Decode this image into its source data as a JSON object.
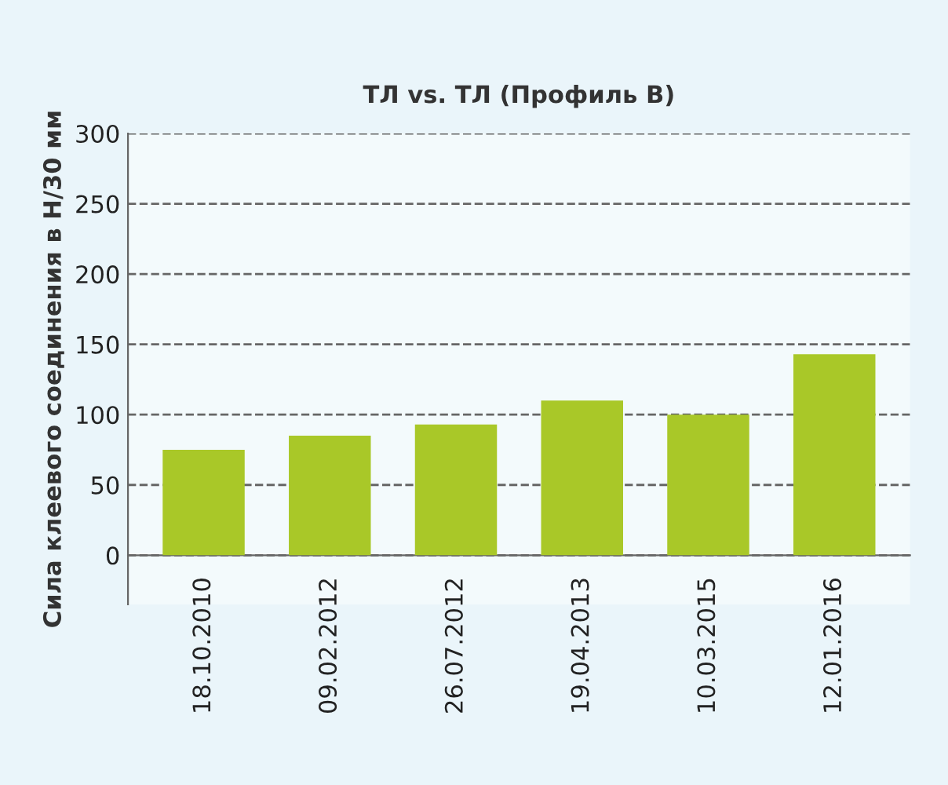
{
  "chart_data": {
    "type": "bar",
    "title": "ТЛ vs. ТЛ (Профиль B)",
    "ylabel": "Сила клеевого соединения в Н/30 мм",
    "categories": [
      "18.10.2010",
      "09.02.2012",
      "26.07.2012",
      "19.04.2013",
      "10.03.2015",
      "12.01.2016"
    ],
    "values": [
      75,
      85,
      93,
      110,
      100,
      143
    ],
    "color": "#a9c828",
    "ylim": [
      -35,
      300
    ],
    "yticks": [
      0,
      50,
      100,
      150,
      200,
      250,
      300
    ],
    "grid": "y",
    "line_style": "dashed"
  }
}
